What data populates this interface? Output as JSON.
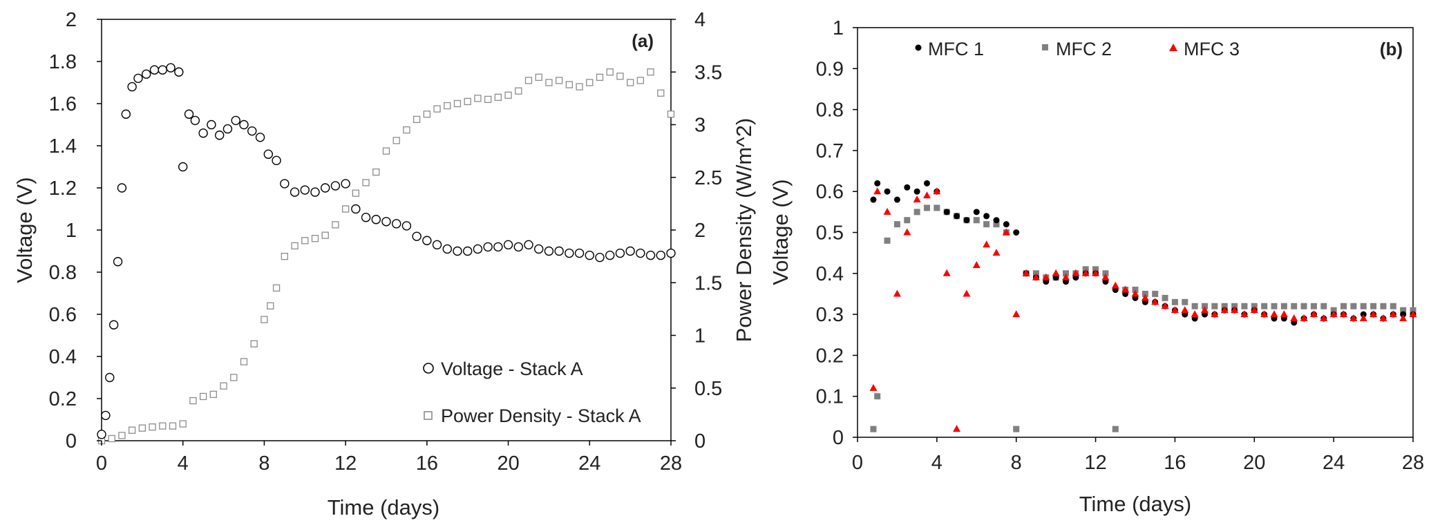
{
  "colors": {
    "voltage_marker_stroke": "#000000",
    "power_marker_stroke": "#8c8c8c",
    "mfc1": "#000000",
    "mfc2": "#808080",
    "mfc3": "#ff0000",
    "axis": "#000000"
  },
  "chart_data": [
    {
      "type": "scatter",
      "panel_label": "(a)",
      "xlabel": "Time (days)",
      "ylabel": "Voltage (V)",
      "y2label": "Power Density (W/m^2)",
      "xlim": [
        0,
        28
      ],
      "ylim": [
        0,
        2
      ],
      "y2lim": [
        0,
        4
      ],
      "x_ticks": [
        "0",
        "4",
        "8",
        "12",
        "16",
        "20",
        "24",
        "28"
      ],
      "y_ticks": [
        "0",
        "0.2",
        "0.4",
        "0.6",
        "0.8",
        "1",
        "1.2",
        "1.4",
        "1.6",
        "1.8",
        "2"
      ],
      "y2_ticks": [
        "0",
        "0.5",
        "1",
        "1.5",
        "2",
        "2.5",
        "3",
        "3.5",
        "4"
      ],
      "grid": false,
      "legend_position": "bottom-right",
      "series": [
        {
          "name": "Voltage - Stack A",
          "marker": "open-circle",
          "axis": "left",
          "x": [
            0.0,
            0.2,
            0.4,
            0.6,
            0.8,
            1.0,
            1.2,
            1.5,
            1.8,
            2.2,
            2.6,
            3.0,
            3.4,
            3.8,
            4.0,
            4.3,
            4.6,
            5.0,
            5.4,
            5.8,
            6.2,
            6.6,
            7.0,
            7.4,
            7.8,
            8.2,
            8.6,
            9.0,
            9.5,
            10.0,
            10.5,
            11.0,
            11.5,
            12.0,
            12.5,
            13.0,
            13.5,
            14.0,
            14.5,
            15.0,
            15.5,
            16.0,
            16.5,
            17.0,
            17.5,
            18.0,
            18.5,
            19.0,
            19.5,
            20.0,
            20.5,
            21.0,
            21.5,
            22.0,
            22.5,
            23.0,
            23.5,
            24.0,
            24.5,
            25.0,
            25.5,
            26.0,
            26.5,
            27.0,
            27.5,
            28.0
          ],
          "y": [
            0.03,
            0.12,
            0.3,
            0.55,
            0.85,
            1.2,
            1.55,
            1.68,
            1.72,
            1.74,
            1.76,
            1.76,
            1.77,
            1.75,
            1.3,
            1.55,
            1.52,
            1.46,
            1.5,
            1.45,
            1.48,
            1.52,
            1.5,
            1.47,
            1.44,
            1.36,
            1.33,
            1.22,
            1.18,
            1.19,
            1.18,
            1.2,
            1.21,
            1.22,
            1.1,
            1.06,
            1.05,
            1.04,
            1.03,
            1.02,
            0.97,
            0.95,
            0.93,
            0.91,
            0.9,
            0.9,
            0.91,
            0.92,
            0.92,
            0.93,
            0.92,
            0.93,
            0.91,
            0.9,
            0.9,
            0.89,
            0.89,
            0.88,
            0.87,
            0.88,
            0.89,
            0.9,
            0.89,
            0.88,
            0.88,
            0.89
          ]
        },
        {
          "name": "Power Density - Stack A",
          "marker": "open-square",
          "axis": "right",
          "x": [
            0.0,
            0.5,
            1.0,
            1.5,
            2.0,
            2.5,
            3.0,
            3.5,
            4.0,
            4.5,
            5.0,
            5.5,
            6.0,
            6.5,
            7.0,
            7.5,
            8.0,
            8.3,
            8.6,
            9.0,
            9.5,
            10.0,
            10.5,
            11.0,
            11.5,
            12.0,
            12.5,
            13.0,
            13.5,
            14.0,
            14.5,
            15.0,
            15.5,
            16.0,
            16.5,
            17.0,
            17.5,
            18.0,
            18.5,
            19.0,
            19.5,
            20.0,
            20.5,
            21.0,
            21.5,
            22.0,
            22.5,
            23.0,
            23.5,
            24.0,
            24.5,
            25.0,
            25.5,
            26.0,
            26.5,
            27.0,
            27.5,
            28.0
          ],
          "y": [
            0.0,
            0.02,
            0.05,
            0.1,
            0.12,
            0.13,
            0.14,
            0.14,
            0.16,
            0.38,
            0.42,
            0.44,
            0.52,
            0.6,
            0.75,
            0.92,
            1.15,
            1.28,
            1.45,
            1.75,
            1.85,
            1.9,
            1.92,
            1.95,
            2.05,
            2.2,
            2.35,
            2.45,
            2.55,
            2.75,
            2.85,
            2.95,
            3.05,
            3.1,
            3.15,
            3.18,
            3.2,
            3.22,
            3.25,
            3.24,
            3.26,
            3.28,
            3.32,
            3.42,
            3.45,
            3.4,
            3.42,
            3.38,
            3.36,
            3.4,
            3.45,
            3.5,
            3.46,
            3.4,
            3.42,
            3.5,
            3.3,
            3.1
          ]
        }
      ]
    },
    {
      "type": "scatter",
      "panel_label": "(b)",
      "xlabel": "Time (days)",
      "ylabel": "Voltage (V)",
      "xlim": [
        0,
        28
      ],
      "ylim": [
        0,
        1
      ],
      "x_ticks": [
        "0",
        "4",
        "8",
        "12",
        "16",
        "20",
        "24",
        "28"
      ],
      "y_ticks": [
        "0",
        "0.1",
        "0.2",
        "0.3",
        "0.4",
        "0.5",
        "0.6",
        "0.7",
        "0.8",
        "0.9",
        "1"
      ],
      "grid": false,
      "legend_position": "top",
      "series": [
        {
          "name": "MFC 1",
          "marker": "filled-circle",
          "x": [
            0.8,
            1.0,
            1.5,
            2.0,
            2.5,
            3.0,
            3.5,
            4.0,
            4.5,
            5.0,
            5.5,
            6.0,
            6.5,
            7.0,
            7.5,
            8.0,
            8.5,
            9.0,
            9.5,
            10.0,
            10.5,
            11.0,
            11.5,
            12.0,
            12.5,
            13.0,
            13.5,
            14.0,
            14.5,
            15.0,
            15.5,
            16.0,
            16.5,
            17.0,
            17.5,
            18.0,
            18.5,
            19.0,
            19.5,
            20.0,
            20.5,
            21.0,
            21.5,
            22.0,
            22.5,
            23.0,
            23.5,
            24.0,
            24.5,
            25.0,
            25.5,
            26.0,
            26.5,
            27.0,
            27.5,
            28.0
          ],
          "y": [
            0.58,
            0.62,
            0.6,
            0.58,
            0.61,
            0.6,
            0.62,
            0.6,
            0.55,
            0.54,
            0.53,
            0.55,
            0.54,
            0.53,
            0.52,
            0.5,
            0.4,
            0.39,
            0.38,
            0.39,
            0.38,
            0.39,
            0.4,
            0.4,
            0.38,
            0.36,
            0.35,
            0.34,
            0.33,
            0.33,
            0.32,
            0.31,
            0.3,
            0.29,
            0.3,
            0.3,
            0.31,
            0.31,
            0.3,
            0.31,
            0.3,
            0.29,
            0.29,
            0.28,
            0.29,
            0.3,
            0.29,
            0.3,
            0.3,
            0.29,
            0.3,
            0.3,
            0.29,
            0.3,
            0.3,
            0.3
          ]
        },
        {
          "name": "MFC 2",
          "marker": "filled-square",
          "x": [
            0.8,
            1.0,
            1.5,
            2.0,
            2.5,
            3.0,
            3.5,
            4.0,
            4.5,
            5.0,
            5.5,
            6.0,
            6.5,
            7.0,
            7.5,
            8.0,
            8.5,
            9.0,
            9.5,
            10.0,
            10.5,
            11.0,
            11.5,
            12.0,
            12.5,
            13.0,
            13.5,
            14.0,
            14.5,
            15.0,
            15.5,
            16.0,
            16.5,
            17.0,
            17.5,
            18.0,
            18.5,
            19.0,
            19.5,
            20.0,
            20.5,
            21.0,
            21.5,
            22.0,
            22.5,
            23.0,
            23.5,
            24.0,
            24.5,
            25.0,
            25.5,
            26.0,
            26.5,
            27.0,
            27.5,
            28.0
          ],
          "y": [
            0.02,
            0.1,
            0.48,
            0.52,
            0.53,
            0.55,
            0.56,
            0.56,
            0.55,
            0.54,
            0.53,
            0.53,
            0.52,
            0.52,
            0.5,
            0.02,
            0.4,
            0.4,
            0.39,
            0.39,
            0.4,
            0.4,
            0.41,
            0.41,
            0.4,
            0.02,
            0.36,
            0.36,
            0.35,
            0.35,
            0.34,
            0.33,
            0.33,
            0.32,
            0.32,
            0.32,
            0.32,
            0.32,
            0.32,
            0.32,
            0.32,
            0.32,
            0.32,
            0.32,
            0.32,
            0.32,
            0.32,
            0.31,
            0.32,
            0.32,
            0.32,
            0.32,
            0.32,
            0.32,
            0.31,
            0.31
          ]
        },
        {
          "name": "MFC 3",
          "marker": "filled-triangle",
          "x": [
            0.8,
            1.0,
            1.5,
            2.0,
            2.5,
            3.0,
            3.5,
            4.0,
            4.5,
            5.0,
            5.5,
            6.0,
            6.5,
            7.0,
            7.5,
            8.0,
            8.5,
            9.0,
            9.5,
            10.0,
            10.5,
            11.0,
            11.5,
            12.0,
            12.5,
            13.0,
            13.5,
            14.0,
            14.5,
            15.0,
            15.5,
            16.0,
            16.5,
            17.0,
            17.5,
            18.0,
            18.5,
            19.0,
            19.5,
            20.0,
            20.5,
            21.0,
            21.5,
            22.0,
            22.5,
            23.0,
            23.5,
            24.0,
            24.5,
            25.0,
            25.5,
            26.0,
            26.5,
            27.0,
            27.5,
            28.0
          ],
          "y": [
            0.12,
            0.6,
            0.55,
            0.35,
            0.5,
            0.58,
            0.59,
            0.6,
            0.4,
            0.02,
            0.35,
            0.42,
            0.47,
            0.45,
            0.5,
            0.3,
            0.4,
            0.39,
            0.39,
            0.4,
            0.39,
            0.4,
            0.4,
            0.4,
            0.39,
            0.37,
            0.36,
            0.35,
            0.34,
            0.33,
            0.32,
            0.31,
            0.31,
            0.3,
            0.31,
            0.3,
            0.31,
            0.31,
            0.3,
            0.31,
            0.3,
            0.3,
            0.3,
            0.29,
            0.29,
            0.3,
            0.29,
            0.3,
            0.3,
            0.29,
            0.29,
            0.3,
            0.29,
            0.3,
            0.29,
            0.3
          ]
        }
      ]
    }
  ]
}
